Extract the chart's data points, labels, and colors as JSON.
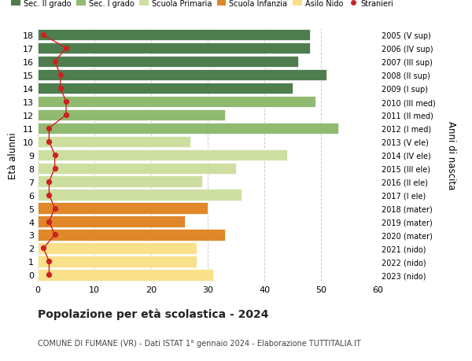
{
  "ages": [
    0,
    1,
    2,
    3,
    4,
    5,
    6,
    7,
    8,
    9,
    10,
    11,
    12,
    13,
    14,
    15,
    16,
    17,
    18
  ],
  "right_labels": [
    "2023 (nido)",
    "2022 (nido)",
    "2021 (nido)",
    "2020 (mater)",
    "2019 (mater)",
    "2018 (mater)",
    "2017 (I ele)",
    "2016 (II ele)",
    "2015 (III ele)",
    "2014 (IV ele)",
    "2013 (V ele)",
    "2012 (I med)",
    "2011 (II med)",
    "2010 (III med)",
    "2009 (I sup)",
    "2008 (II sup)",
    "2007 (III sup)",
    "2006 (IV sup)",
    "2005 (V sup)"
  ],
  "bar_values": [
    31,
    28,
    28,
    33,
    26,
    30,
    36,
    29,
    35,
    44,
    27,
    53,
    33,
    49,
    45,
    51,
    46,
    48,
    48
  ],
  "bar_colors": [
    "#f9e08a",
    "#f9e08a",
    "#f9e08a",
    "#e0872a",
    "#e0872a",
    "#e0872a",
    "#cddfa0",
    "#cddfa0",
    "#cddfa0",
    "#cddfa0",
    "#cddfa0",
    "#8fba70",
    "#8fba70",
    "#8fba70",
    "#4e7d4e",
    "#4e7d4e",
    "#4e7d4e",
    "#4e7d4e",
    "#4e7d4e"
  ],
  "stranieri_values": [
    2,
    2,
    1,
    3,
    2,
    3,
    2,
    2,
    3,
    3,
    2,
    2,
    5,
    5,
    4,
    4,
    3,
    5,
    1
  ],
  "legend_labels": [
    "Sec. II grado",
    "Sec. I grado",
    "Scuola Primaria",
    "Scuola Infanzia",
    "Asilo Nido",
    "Stranieri"
  ],
  "legend_colors": [
    "#4e7d4e",
    "#8fba70",
    "#cddfa0",
    "#e0872a",
    "#f9e08a",
    "#cc2222"
  ],
  "ylabel": "Età alunni",
  "right_ylabel": "Anni di nascita",
  "title": "Popolazione per età scolastica - 2024",
  "subtitle": "COMUNE DI FUMANE (VR) - Dati ISTAT 1° gennaio 2024 - Elaborazione TUTTITALIA.IT",
  "xlim": [
    0,
    60
  ],
  "xticks": [
    0,
    10,
    20,
    30,
    40,
    50,
    60
  ],
  "background_color": "#ffffff",
  "grid_color": "#cccccc",
  "bar_edge_color": "#ffffff"
}
